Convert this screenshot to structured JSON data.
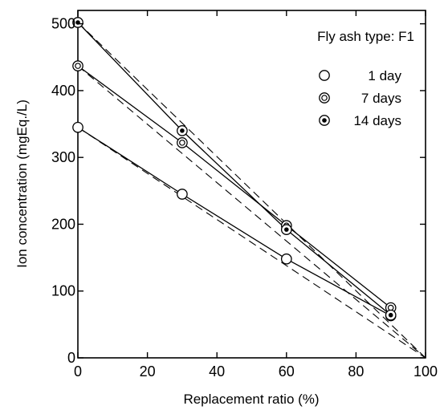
{
  "chart_data": {
    "type": "line",
    "xlabel": "Replacement ratio (%)",
    "ylabel": "Ion concentration (mgEq./L)",
    "xlim": [
      0,
      100
    ],
    "ylim": [
      0,
      520
    ],
    "x_ticks": [
      0,
      20,
      40,
      60,
      80,
      100
    ],
    "y_ticks": [
      0,
      100,
      200,
      300,
      400,
      500
    ],
    "grid": false,
    "legend_title": "Fly ash type: F1",
    "legend_position": "top-right",
    "series": [
      {
        "name": "1 day",
        "marker": "open-circle",
        "x": [
          0,
          30,
          60,
          90
        ],
        "y": [
          345,
          245,
          148,
          63
        ]
      },
      {
        "name": "7 days",
        "marker": "double-circle",
        "x": [
          0,
          30,
          60,
          90
        ],
        "y": [
          437,
          322,
          198,
          75
        ]
      },
      {
        "name": "14 days",
        "marker": "dot-circle",
        "x": [
          0,
          30,
          60,
          90
        ],
        "y": [
          502,
          340,
          192,
          64
        ]
      }
    ],
    "reference_lines": [
      {
        "style": "dashed",
        "from": [
          0,
          345
        ],
        "to": [
          100,
          0
        ]
      },
      {
        "style": "dashed",
        "from": [
          0,
          437
        ],
        "to": [
          100,
          0
        ]
      },
      {
        "style": "dashed",
        "from": [
          0,
          502
        ],
        "to": [
          100,
          0
        ]
      }
    ]
  }
}
